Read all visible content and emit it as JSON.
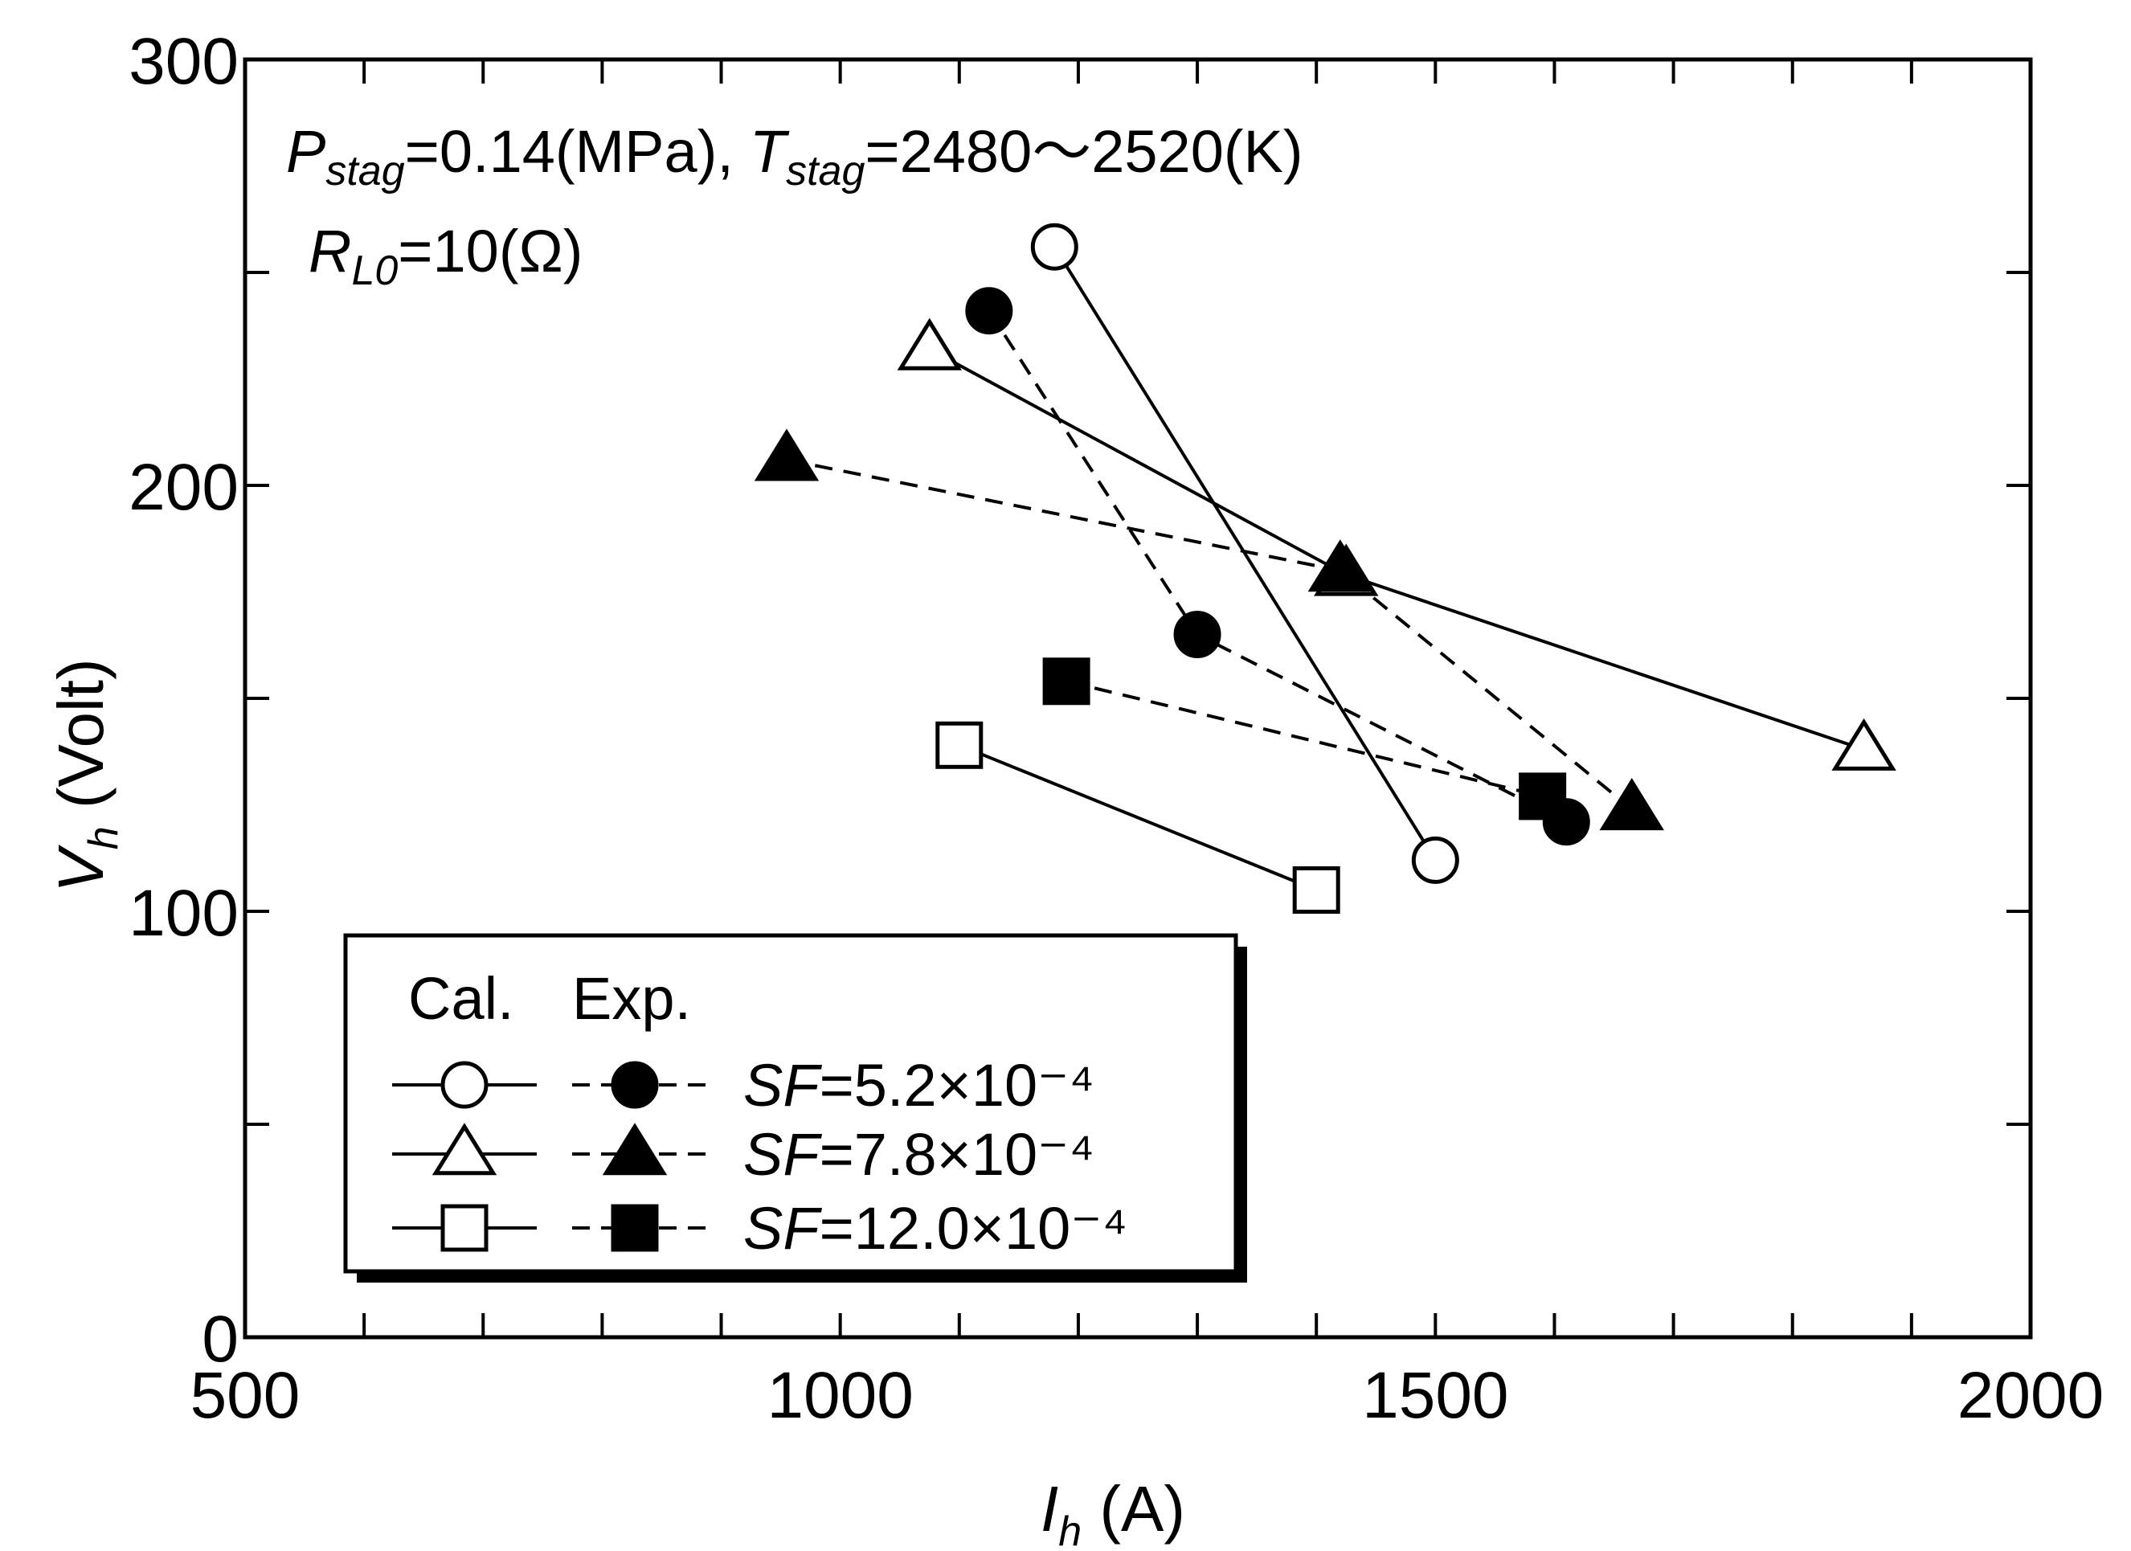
{
  "chart_data": {
    "type": "scatter",
    "title": "",
    "xlabel": {
      "symbol": "I",
      "sub": "h",
      "unit": " (A)"
    },
    "ylabel": {
      "symbol": "V",
      "sub": "h",
      "unit": " (Volt)"
    },
    "xlim": [
      500,
      2000
    ],
    "ylim": [
      0,
      300
    ],
    "xticks": [
      500,
      1000,
      1500,
      2000
    ],
    "xtick_labels": [
      "500",
      "1000",
      "1500",
      "2000"
    ],
    "yticks": [
      0,
      100,
      200,
      300
    ],
    "ytick_labels": [
      "0",
      "100",
      "200",
      "300"
    ],
    "grid": false,
    "annotations": {
      "line1": {
        "p_sym": "P",
        "p_sub": "stag",
        "p_val": "=0.14(MPa),",
        "t_sym": "T",
        "t_sub": "stag",
        "t_val": "=2480～2520(K)"
      },
      "line2": {
        "r_sym": "R",
        "r_sub": "L0",
        "r_val": "=10(Ω)"
      }
    },
    "legend": {
      "position": "bottom-left",
      "header_cal": "Cal.",
      "header_exp": "Exp.",
      "entries": [
        {
          "label": "=5.2×10⁻⁴",
          "prefix": "SF"
        },
        {
          "label": "=7.8×10⁻⁴",
          "prefix": "SF"
        },
        {
          "label": "=12.0×10⁻⁴",
          "prefix": "SF"
        }
      ]
    },
    "series": [
      {
        "name": "Cal. SF=5.2×10⁻⁴",
        "marker": "circle",
        "filled": false,
        "line": "solid",
        "x": [
          1180,
          1500
        ],
        "y": [
          256,
          112
        ]
      },
      {
        "name": "Exp. SF=5.2×10⁻⁴",
        "marker": "circle",
        "filled": true,
        "line": "dashed",
        "x": [
          1125,
          1300,
          1610
        ],
        "y": [
          241,
          165,
          121
        ]
      },
      {
        "name": "Cal. SF=7.8×10⁻⁴",
        "marker": "triangle",
        "filled": false,
        "line": "solid",
        "x": [
          1075,
          1425,
          1860
        ],
        "y": [
          232,
          179,
          138
        ]
      },
      {
        "name": "Exp. SF=7.8×10⁻⁴",
        "marker": "triangle",
        "filled": true,
        "line": "dashed",
        "x": [
          955,
          1420,
          1665
        ],
        "y": [
          206,
          180,
          124
        ]
      },
      {
        "name": "Cal. SF=12.0×10⁻⁴",
        "marker": "square",
        "filled": false,
        "line": "solid",
        "x": [
          1100,
          1400
        ],
        "y": [
          139,
          105
        ]
      },
      {
        "name": "Exp. SF=12.0×10⁻⁴",
        "marker": "square",
        "filled": true,
        "line": "dashed",
        "x": [
          1190,
          1590
        ],
        "y": [
          154,
          127
        ]
      }
    ],
    "colors": {
      "ink": "#000000",
      "background": "#ffffff"
    }
  }
}
